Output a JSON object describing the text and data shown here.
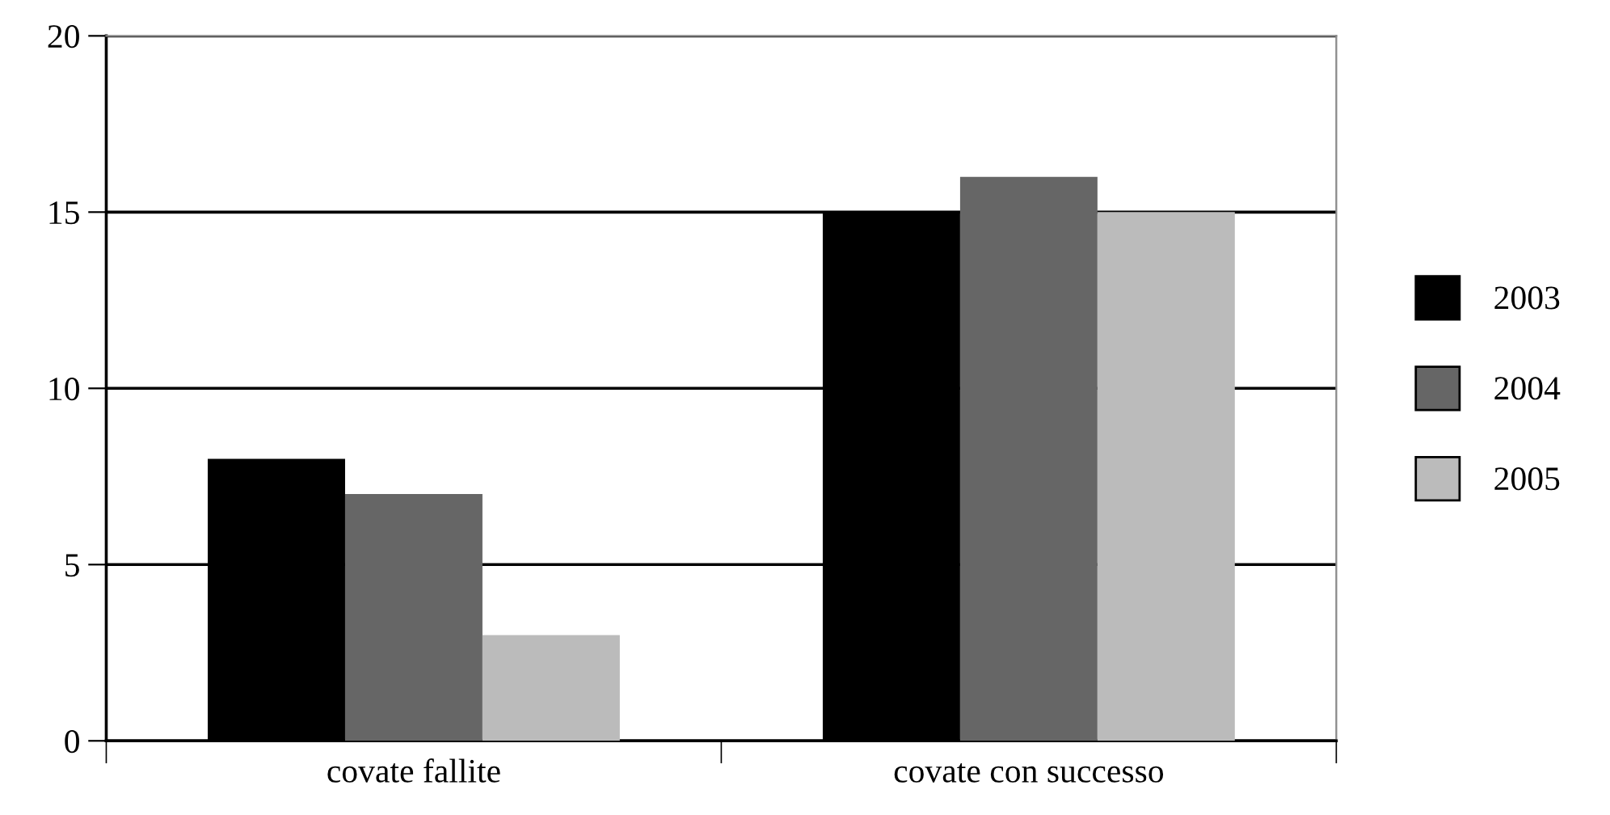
{
  "chart_data": {
    "type": "bar",
    "categories": [
      "covate fallite",
      "covate con successo"
    ],
    "series": [
      {
        "name": "2003",
        "color": "#000000",
        "values": [
          8,
          15
        ]
      },
      {
        "name": "2004",
        "color": "#666666",
        "values": [
          7,
          16
        ]
      },
      {
        "name": "2005",
        "color": "#bbbbbb",
        "values": [
          3,
          15
        ]
      }
    ],
    "ylim": [
      0,
      20
    ],
    "yticks": [
      0,
      5,
      10,
      15,
      20
    ],
    "grid": "y",
    "legend": "right"
  }
}
